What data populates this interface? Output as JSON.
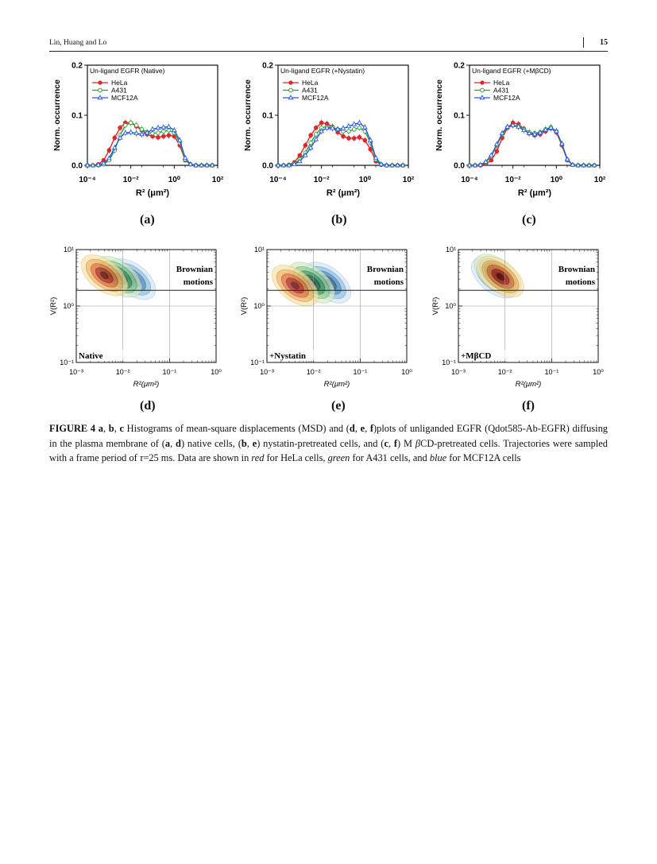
{
  "header": {
    "authors": "Lin, Huang and Lo",
    "page_number": "15"
  },
  "colors": {
    "HeLa": "#e0262a",
    "A431": "#2f9e3a",
    "MCF12A": "#2a5bd7"
  },
  "panel_labels": [
    "(a)",
    "(b)",
    "(c)",
    "(d)",
    "(e)",
    "(f)"
  ],
  "chart_data": [
    {
      "type": "line",
      "panel": "a",
      "title": "Un-ligand EGFR (Native)",
      "xlabel": "R² (μm²)",
      "ylabel": "Norm. occurrence",
      "xscale": "log",
      "xlim": [
        0.0001,
        100
      ],
      "ylim": [
        0,
        0.2
      ],
      "x_ticks": [
        "10⁻⁴",
        "10⁻²",
        "10⁰",
        "10²"
      ],
      "y_ticks": [
        "0.0",
        "0.1",
        "0.2"
      ],
      "legend_position": "top-left",
      "x": [
        0.0001,
        0.00018,
        0.00032,
        0.00056,
        0.001,
        0.0018,
        0.0032,
        0.0056,
        0.01,
        0.018,
        0.032,
        0.056,
        0.1,
        0.18,
        0.32,
        0.56,
        1,
        1.8,
        3.2,
        5.6,
        10,
        18,
        32,
        56
      ],
      "series": [
        {
          "name": "HeLa",
          "marker": "circle",
          "values": [
            0,
            0,
            0.002,
            0.01,
            0.03,
            0.055,
            0.075,
            0.085,
            0.085,
            0.078,
            0.07,
            0.062,
            0.058,
            0.056,
            0.058,
            0.06,
            0.058,
            0.04,
            0.01,
            0.002,
            0,
            0,
            0,
            0
          ]
        },
        {
          "name": "A431",
          "marker": "open-circle",
          "values": [
            0,
            0,
            0,
            0.002,
            0.01,
            0.03,
            0.06,
            0.08,
            0.085,
            0.08,
            0.072,
            0.066,
            0.064,
            0.065,
            0.068,
            0.07,
            0.065,
            0.045,
            0.012,
            0.002,
            0,
            0,
            0,
            0
          ]
        },
        {
          "name": "MCF12A",
          "marker": "open-triangle",
          "values": [
            0,
            0,
            0.001,
            0.004,
            0.014,
            0.035,
            0.055,
            0.065,
            0.066,
            0.064,
            0.062,
            0.065,
            0.072,
            0.075,
            0.076,
            0.077,
            0.07,
            0.05,
            0.015,
            0.002,
            0,
            0,
            0,
            0
          ]
        }
      ]
    },
    {
      "type": "line",
      "panel": "b",
      "title": "Un-ligand EGFR (+Nystatin)",
      "xlabel": "R² (μm²)",
      "ylabel": "Norm. occurrence",
      "xscale": "log",
      "xlim": [
        0.0001,
        100
      ],
      "ylim": [
        0,
        0.2
      ],
      "x_ticks": [
        "10⁻⁴",
        "10⁻²",
        "10⁰",
        "10²"
      ],
      "y_ticks": [
        "0.0",
        "0.1",
        "0.2"
      ],
      "legend_position": "top-left",
      "x": [
        0.0001,
        0.00018,
        0.00032,
        0.00056,
        0.001,
        0.0018,
        0.0032,
        0.0056,
        0.01,
        0.018,
        0.032,
        0.056,
        0.1,
        0.18,
        0.32,
        0.56,
        1,
        1.8,
        3.2,
        5.6,
        10,
        18,
        32,
        56
      ],
      "series": [
        {
          "name": "HeLa",
          "marker": "circle",
          "values": [
            0,
            0,
            0.001,
            0.006,
            0.02,
            0.04,
            0.06,
            0.075,
            0.085,
            0.083,
            0.077,
            0.066,
            0.058,
            0.054,
            0.054,
            0.056,
            0.05,
            0.032,
            0.008,
            0.001,
            0,
            0,
            0,
            0
          ]
        },
        {
          "name": "A431",
          "marker": "open-circle",
          "values": [
            0,
            0,
            0,
            0.003,
            0.012,
            0.025,
            0.045,
            0.062,
            0.075,
            0.077,
            0.076,
            0.072,
            0.068,
            0.068,
            0.072,
            0.075,
            0.068,
            0.045,
            0.012,
            0.002,
            0,
            0,
            0,
            0
          ]
        },
        {
          "name": "MCF12A",
          "marker": "open-triangle",
          "values": [
            0,
            0,
            0,
            0.002,
            0.008,
            0.02,
            0.035,
            0.052,
            0.068,
            0.075,
            0.074,
            0.072,
            0.074,
            0.078,
            0.082,
            0.085,
            0.076,
            0.05,
            0.015,
            0.002,
            0,
            0,
            0,
            0
          ]
        }
      ]
    },
    {
      "type": "line",
      "panel": "c",
      "title": "Un-ligand EGFR (+MβCD)",
      "xlabel": "R² (μm²)",
      "ylabel": "Norm. occurrence",
      "xscale": "log",
      "xlim": [
        0.0001,
        100
      ],
      "ylim": [
        0,
        0.2
      ],
      "x_ticks": [
        "10⁻⁴",
        "10⁻²",
        "10⁰",
        "10²"
      ],
      "y_ticks": [
        "0.0",
        "0.1",
        "0.2"
      ],
      "legend_position": "top-left",
      "x": [
        0.0001,
        0.00018,
        0.00032,
        0.00056,
        0.001,
        0.0018,
        0.0032,
        0.0056,
        0.01,
        0.018,
        0.032,
        0.056,
        0.1,
        0.18,
        0.32,
        0.56,
        1,
        1.8,
        3.2,
        5.6,
        10,
        18,
        32,
        56
      ],
      "series": [
        {
          "name": "HeLa",
          "marker": "circle",
          "values": [
            0,
            0,
            0,
            0.003,
            0.01,
            0.028,
            0.055,
            0.075,
            0.085,
            0.082,
            0.073,
            0.064,
            0.06,
            0.062,
            0.068,
            0.074,
            0.066,
            0.04,
            0.01,
            0.001,
            0,
            0,
            0,
            0
          ]
        },
        {
          "name": "A431",
          "marker": "open-circle",
          "values": [
            0,
            0,
            0.001,
            0.006,
            0.018,
            0.04,
            0.062,
            0.076,
            0.08,
            0.078,
            0.072,
            0.066,
            0.064,
            0.066,
            0.072,
            0.076,
            0.068,
            0.042,
            0.011,
            0.001,
            0,
            0,
            0,
            0
          ]
        },
        {
          "name": "MCF12A",
          "marker": "open-triangle",
          "values": [
            0,
            0,
            0.001,
            0.007,
            0.02,
            0.042,
            0.064,
            0.077,
            0.08,
            0.077,
            0.07,
            0.064,
            0.062,
            0.065,
            0.071,
            0.075,
            0.068,
            0.043,
            0.012,
            0.001,
            0,
            0,
            0,
            0
          ]
        }
      ]
    },
    {
      "type": "heatmap",
      "panel": "d",
      "xlabel": "R²(μm²)",
      "ylabel": "V(R²)",
      "xscale": "log",
      "yscale": "log",
      "xlim": [
        0.001,
        1
      ],
      "ylim": [
        0.1,
        10
      ],
      "x_ticks": [
        "10⁻³",
        "10⁻²",
        "10⁻¹",
        "10⁰"
      ],
      "y_ticks": [
        "10⁻¹",
        "10⁰",
        "10¹"
      ],
      "threshold_y": 1.9,
      "annotations": [
        "Brownian",
        "motions",
        "Native"
      ],
      "blobs": [
        {
          "series": "HeLa",
          "center": [
            0.004,
            3.5
          ]
        },
        {
          "series": "A431",
          "center": [
            0.008,
            3.3
          ]
        },
        {
          "series": "MCF12A",
          "center": [
            0.016,
            3.0
          ]
        }
      ]
    },
    {
      "type": "heatmap",
      "panel": "e",
      "xlabel": "R²(μm²)",
      "ylabel": "V(R²)",
      "xscale": "log",
      "yscale": "log",
      "xlim": [
        0.001,
        1
      ],
      "ylim": [
        0.1,
        10
      ],
      "x_ticks": [
        "10⁻³",
        "10⁻²",
        "10⁻¹",
        "10⁰"
      ],
      "y_ticks": [
        "10⁻¹",
        "10⁰",
        "10¹"
      ],
      "threshold_y": 1.9,
      "annotations": [
        "Brownian",
        "motions",
        "+Nystatin"
      ],
      "blobs": [
        {
          "series": "HeLa",
          "center": [
            0.004,
            2.3
          ]
        },
        {
          "series": "A431",
          "center": [
            0.009,
            2.6
          ]
        },
        {
          "series": "MCF12A",
          "center": [
            0.02,
            2.6
          ]
        }
      ]
    },
    {
      "type": "heatmap",
      "panel": "f",
      "xlabel": "R²(μm²)",
      "ylabel": "V(R²)",
      "xscale": "log",
      "yscale": "log",
      "xlim": [
        0.001,
        1
      ],
      "ylim": [
        0.1,
        10
      ],
      "x_ticks": [
        "10⁻³",
        "10⁻²",
        "10⁻¹",
        "10⁰"
      ],
      "y_ticks": [
        "10⁻¹",
        "10⁰",
        "10¹"
      ],
      "threshold_y": 1.9,
      "annotations": [
        "Brownian",
        "motions",
        "+MβCD"
      ],
      "blobs": [
        {
          "series": "HeLa",
          "center": [
            0.008,
            3.3
          ]
        },
        {
          "series": "A431",
          "center": [
            0.007,
            3.6
          ]
        },
        {
          "series": "MCF12A",
          "center": [
            0.006,
            3.2
          ]
        }
      ]
    }
  ],
  "caption": {
    "fig_label": "FIGURE 4",
    "parts": [
      {
        "t": " ",
        "s": "n"
      },
      {
        "t": "a",
        "s": "b"
      },
      {
        "t": ", ",
        "s": "n"
      },
      {
        "t": "b",
        "s": "b"
      },
      {
        "t": ", ",
        "s": "n"
      },
      {
        "t": "c",
        "s": "b"
      },
      {
        "t": " Histograms of mean-square displacements (MSD) and (",
        "s": "n"
      },
      {
        "t": "d",
        "s": "b"
      },
      {
        "t": ", ",
        "s": "n"
      },
      {
        "t": "e",
        "s": "b"
      },
      {
        "t": ", ",
        "s": "n"
      },
      {
        "t": "f",
        "s": "b"
      },
      {
        "t": ")plots of unliganded EGFR (Qdot585-Ab-EGFR) diffusing in the plasma membrane of (",
        "s": "n"
      },
      {
        "t": "a",
        "s": "b"
      },
      {
        "t": ", ",
        "s": "n"
      },
      {
        "t": "d",
        "s": "b"
      },
      {
        "t": ") native cells, (",
        "s": "n"
      },
      {
        "t": "b",
        "s": "b"
      },
      {
        "t": ", ",
        "s": "n"
      },
      {
        "t": "e",
        "s": "b"
      },
      {
        "t": ") nystatin-pretreated cells, and (",
        "s": "n"
      },
      {
        "t": "c",
        "s": "b"
      },
      {
        "t": ", ",
        "s": "n"
      },
      {
        "t": "f",
        "s": "b"
      },
      {
        "t": ") M ",
        "s": "n"
      },
      {
        "t": "β",
        "s": "i"
      },
      {
        "t": "CD-pretreated cells. Trajectories were sampled with a frame period of ",
        "s": "n"
      },
      {
        "t": "τ",
        "s": "i"
      },
      {
        "t": "=25 ms. Data are shown in ",
        "s": "n"
      },
      {
        "t": "red",
        "s": "i"
      },
      {
        "t": " for HeLa cells, ",
        "s": "n"
      },
      {
        "t": "green",
        "s": "i"
      },
      {
        "t": " for A431 cells, and ",
        "s": "n"
      },
      {
        "t": "blue",
        "s": "i"
      },
      {
        "t": " for MCF12A cells",
        "s": "n"
      }
    ]
  }
}
